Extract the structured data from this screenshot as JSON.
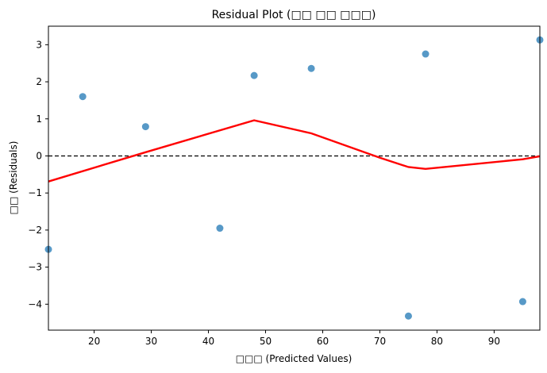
{
  "chart_data": {
    "type": "scatter",
    "title": "Residual Plot (□□ □□ □□□)",
    "xlabel": "□□□ (Predicted Values)",
    "ylabel": "□□ (Residuals)",
    "xlim": [
      12,
      98
    ],
    "ylim": [
      -4.7,
      3.5
    ],
    "xticks": [
      20,
      30,
      40,
      50,
      60,
      70,
      80,
      90
    ],
    "yticks": [
      -4,
      -3,
      -2,
      -1,
      0,
      1,
      2,
      3
    ],
    "grid": false,
    "points": [
      {
        "x": 12,
        "y": -2.52
      },
      {
        "x": 18,
        "y": 1.6
      },
      {
        "x": 29,
        "y": 0.79
      },
      {
        "x": 42,
        "y": -1.95
      },
      {
        "x": 48,
        "y": 2.17
      },
      {
        "x": 58,
        "y": 2.36
      },
      {
        "x": 75,
        "y": -4.32
      },
      {
        "x": 78,
        "y": 2.75
      },
      {
        "x": 95,
        "y": -3.93
      },
      {
        "x": 98,
        "y": 3.13
      }
    ],
    "trend_line": [
      {
        "x": 12,
        "y": -0.69
      },
      {
        "x": 29,
        "y": 0.1
      },
      {
        "x": 48,
        "y": 0.96
      },
      {
        "x": 58,
        "y": 0.61
      },
      {
        "x": 70,
        "y": -0.05
      },
      {
        "x": 75,
        "y": -0.3
      },
      {
        "x": 78,
        "y": -0.35
      },
      {
        "x": 95,
        "y": -0.09
      },
      {
        "x": 98,
        "y": -0.01
      }
    ],
    "reference_line": {
      "y": 0
    },
    "colors": {
      "points": "#1f77b4",
      "trend": "#ff0000",
      "reference": "#000000"
    }
  }
}
